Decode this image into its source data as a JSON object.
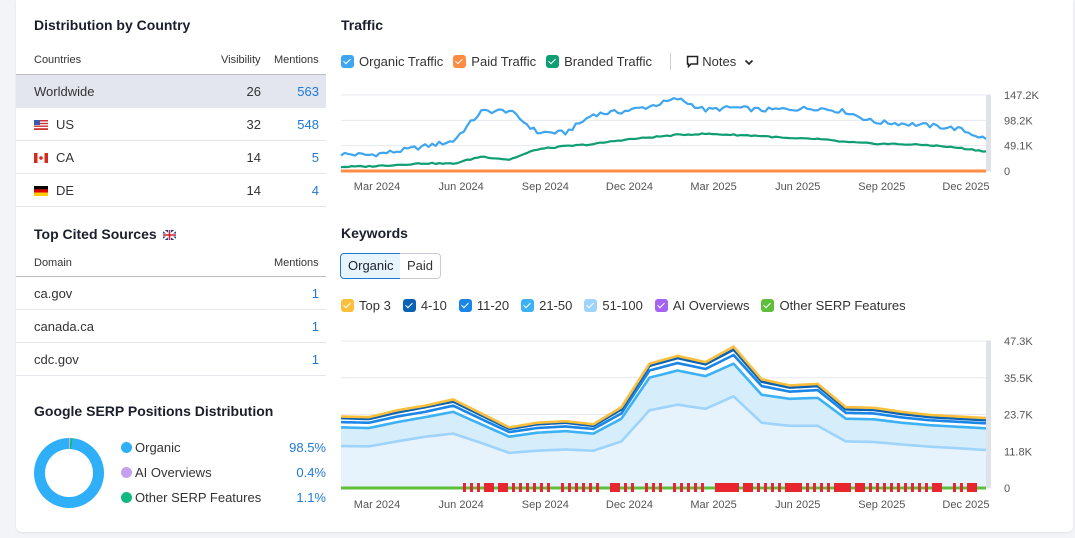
{
  "distribution": {
    "title": "Distribution by Country",
    "headers": {
      "country": "Countries",
      "visibility": "Visibility",
      "mentions": "Mentions"
    },
    "rows": [
      {
        "country": "Worldwide",
        "flag": "",
        "visibility": "26",
        "mentions": "563"
      },
      {
        "country": "US",
        "flag": "us-flag",
        "visibility": "32",
        "mentions": "548"
      },
      {
        "country": "CA",
        "flag": "ca-flag",
        "visibility": "14",
        "mentions": "5"
      },
      {
        "country": "DE",
        "flag": "de-flag",
        "visibility": "14",
        "mentions": "4"
      }
    ]
  },
  "cited": {
    "title": "Top Cited Sources",
    "flag": "uk-flag",
    "headers": {
      "domain": "Domain",
      "mentions": "Mentions"
    },
    "rows": [
      {
        "domain": "ca.gov",
        "mentions": "1"
      },
      {
        "domain": "canada.ca",
        "mentions": "1"
      },
      {
        "domain": "cdc.gov",
        "mentions": "1"
      }
    ]
  },
  "serp": {
    "title": "Google SERP Positions Distribution",
    "items": [
      {
        "label": "Organic",
        "value": "98.5%",
        "pct": 98.5,
        "color": "#2eaff7"
      },
      {
        "label": "AI Overviews",
        "value": "0.4%",
        "pct": 0.4,
        "color": "#c59ff0"
      },
      {
        "label": "Other SERP Features",
        "value": "1.1%",
        "pct": 1.1,
        "color": "#10b981"
      }
    ]
  },
  "traffic": {
    "title": "Traffic",
    "legend": [
      {
        "label": "Organic Traffic",
        "color": "#3ea6f0"
      },
      {
        "label": "Paid Traffic",
        "color": "#ff8c42"
      },
      {
        "label": "Branded Traffic",
        "color": "#0f9d74"
      }
    ],
    "notes_label": "Notes"
  },
  "keywords": {
    "title": "Keywords",
    "tabs": [
      {
        "label": "Organic",
        "active": true
      },
      {
        "label": "Paid",
        "active": false
      }
    ],
    "legend": [
      {
        "label": "Top 3",
        "color": "#fbbf3c"
      },
      {
        "label": "4-10",
        "color": "#0a62b4"
      },
      {
        "label": "11-20",
        "color": "#1a86e8"
      },
      {
        "label": "21-50",
        "color": "#3cb2f5"
      },
      {
        "label": "51-100",
        "color": "#9ed3fb"
      },
      {
        "label": "AI Overviews",
        "color": "#a463f2"
      },
      {
        "label": "Other SERP Features",
        "color": "#5fbf3a"
      }
    ]
  },
  "chart_data": [
    {
      "type": "line",
      "title": "Traffic",
      "x": [
        "Feb 2024",
        "Mar 2024",
        "Apr 2024",
        "May 2024",
        "Jun 2024",
        "Jul 2024",
        "Aug 2024",
        "Sep 2024",
        "Oct 2024",
        "Nov 2024",
        "Dec 2024",
        "Jan 2025",
        "Feb 2025",
        "Mar 2025",
        "Apr 2025",
        "May 2025",
        "Jun 2025",
        "Jul 2025",
        "Aug 2025",
        "Sep 2025",
        "Oct 2025",
        "Nov 2025",
        "Dec 2025",
        "Jan 2026"
      ],
      "xticks": [
        "Mar 2024",
        "Jun 2024",
        "Sep 2024",
        "Dec 2024",
        "Mar 2025",
        "Jun 2025",
        "Sep 2025",
        "Dec 2025"
      ],
      "yticks": [
        "0",
        "49.1K",
        "98.2K",
        "147.2K"
      ],
      "ylim": [
        0,
        147200
      ],
      "grid": true,
      "series": [
        {
          "name": "Organic Traffic",
          "values": [
            33000,
            31000,
            38000,
            48000,
            58000,
            115000,
            117000,
            75000,
            74000,
            110000,
            115000,
            125000,
            140000,
            118000,
            123000,
            118000,
            120000,
            122000,
            115000,
            95000,
            92000,
            88000,
            82000,
            62000
          ]
        },
        {
          "name": "Paid Traffic",
          "values": [
            0,
            0,
            0,
            0,
            0,
            0,
            0,
            0,
            0,
            0,
            0,
            0,
            0,
            0,
            0,
            0,
            0,
            0,
            0,
            0,
            0,
            0,
            0,
            0
          ]
        },
        {
          "name": "Branded Traffic",
          "values": [
            8000,
            9000,
            12000,
            15000,
            14000,
            28000,
            22000,
            42000,
            48000,
            52000,
            60000,
            65000,
            70000,
            72000,
            70000,
            68000,
            63000,
            62000,
            56000,
            53000,
            52000,
            50000,
            45000,
            38000
          ]
        }
      ]
    },
    {
      "type": "area",
      "title": "Keywords",
      "x": [
        "Feb 2024",
        "Mar 2024",
        "Apr 2024",
        "May 2024",
        "Jun 2024",
        "Jul 2024",
        "Aug 2024",
        "Sep 2024",
        "Oct 2024",
        "Nov 2024",
        "Dec 2024",
        "Jan 2025",
        "Feb 2025",
        "Mar 2025",
        "Apr 2025",
        "May 2025",
        "Jun 2025",
        "Jul 2025",
        "Aug 2025",
        "Sep 2025",
        "Oct 2025",
        "Nov 2025",
        "Dec 2025",
        "Jan 2026"
      ],
      "xticks": [
        "Mar 2024",
        "Jun 2024",
        "Sep 2024",
        "Dec 2024",
        "Mar 2025",
        "Jun 2025",
        "Sep 2025",
        "Dec 2025"
      ],
      "yticks": [
        "0",
        "11.8K",
        "23.7K",
        "35.5K",
        "47.3K"
      ],
      "ylim": [
        0,
        47300
      ],
      "grid": true,
      "series": [
        {
          "name": "Top 3",
          "values": [
            23000,
            22800,
            25000,
            26500,
            28500,
            24000,
            19500,
            21000,
            21500,
            20500,
            26000,
            40000,
            42500,
            40500,
            45500,
            35000,
            33000,
            33500,
            26000,
            25800,
            24500,
            23500,
            23000,
            22500
          ]
        },
        {
          "name": "4-10",
          "values": [
            22500,
            22200,
            24300,
            26000,
            27800,
            23400,
            19000,
            20500,
            21000,
            20000,
            25300,
            39300,
            41800,
            39800,
            44500,
            34200,
            32300,
            32800,
            25300,
            25100,
            23800,
            22800,
            22300,
            21800
          ]
        },
        {
          "name": "11-20",
          "values": [
            21200,
            21000,
            23000,
            24500,
            26500,
            22200,
            18000,
            19300,
            19800,
            19000,
            24000,
            37800,
            40200,
            38300,
            42800,
            32800,
            31000,
            31500,
            24200,
            24000,
            22700,
            21800,
            21300,
            20800
          ]
        },
        {
          "name": "21-50",
          "values": [
            19500,
            19300,
            21200,
            22800,
            24500,
            20500,
            16500,
            17800,
            18300,
            17500,
            22300,
            35500,
            37800,
            36000,
            40000,
            30000,
            28700,
            29000,
            22300,
            22100,
            21000,
            20200,
            19700,
            19200
          ]
        },
        {
          "name": "51-100",
          "values": [
            13500,
            13400,
            15000,
            16500,
            17500,
            14500,
            11300,
            12000,
            12400,
            12000,
            15000,
            25000,
            26800,
            25500,
            29500,
            21000,
            20000,
            20000,
            15000,
            14800,
            14000,
            13300,
            12800,
            12200
          ]
        }
      ]
    }
  ]
}
